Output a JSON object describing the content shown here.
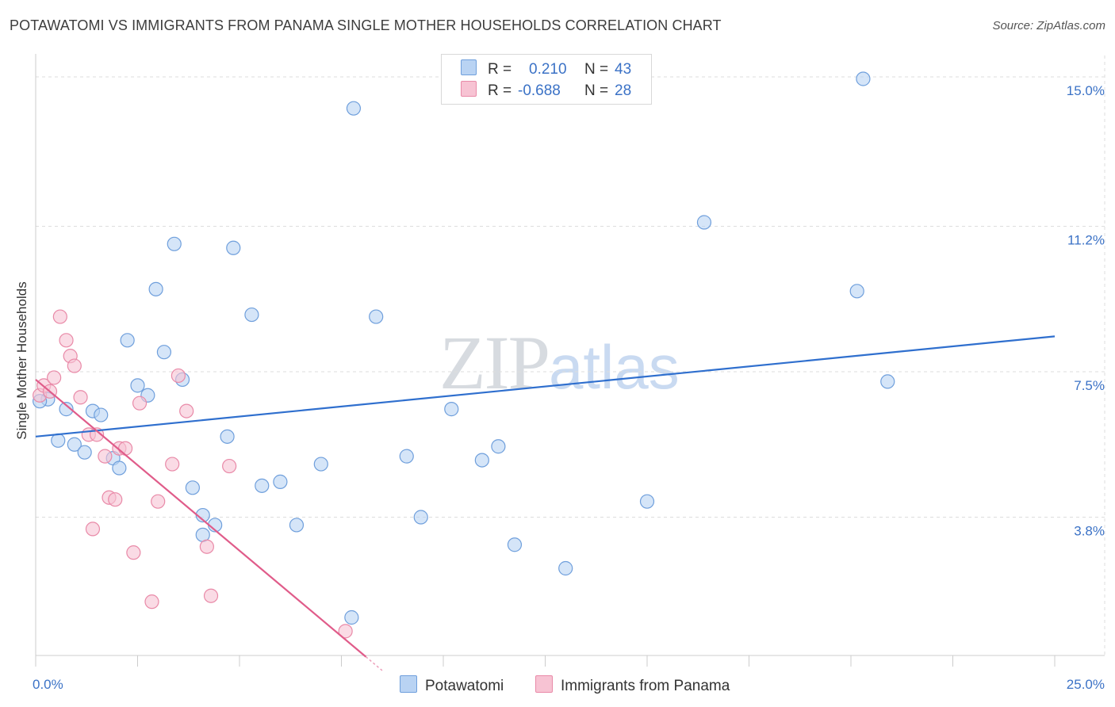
{
  "header": {
    "title": "POTAWATOMI VS IMMIGRANTS FROM PANAMA SINGLE MOTHER HOUSEHOLDS CORRELATION CHART",
    "source": "Source: ZipAtlas.com"
  },
  "watermark": {
    "zip": "ZIP",
    "atlas": "atlas"
  },
  "colors": {
    "blue_fill": "#b9d3f3",
    "blue_stroke": "#6f9fdc",
    "blue_line": "#2f6fce",
    "pink_fill": "#f7c3d3",
    "pink_stroke": "#e98aa8",
    "pink_line": "#e05c8a",
    "axis_label": "#3b72c6",
    "grid": "#dddddd"
  },
  "legend": {
    "rows": [
      {
        "r_label": "R =",
        "r_value": "0.210",
        "n_label": "N =",
        "n_value": "43"
      },
      {
        "r_label": "R =",
        "r_value": "-0.688",
        "n_label": "N =",
        "n_value": "28"
      }
    ]
  },
  "chart_data": {
    "type": "scatter",
    "title": "POTAWATOMI VS IMMIGRANTS FROM PANAMA SINGLE MOTHER HOUSEHOLDS CORRELATION CHART",
    "xlabel": "",
    "ylabel": "Single Mother Households",
    "xlim": [
      0,
      25
    ],
    "ylim": [
      0,
      15.5
    ],
    "x_ticks": [
      "0.0%",
      "25.0%"
    ],
    "y_ticks": [
      {
        "value": 3.8,
        "label": "3.8%"
      },
      {
        "value": 7.5,
        "label": "7.5%"
      },
      {
        "value": 11.2,
        "label": "11.2%"
      },
      {
        "value": 15.0,
        "label": "15.0%"
      }
    ],
    "grid": true,
    "legend_position": "top-center",
    "series": [
      {
        "name": "Potawatomi",
        "color": "#b9d3f3",
        "r": 0.21,
        "n": 43,
        "trend": {
          "x": [
            0,
            25
          ],
          "y": [
            5.85,
            8.4
          ]
        },
        "points": [
          [
            0.3,
            6.8
          ],
          [
            0.55,
            5.75
          ],
          [
            0.75,
            6.55
          ],
          [
            0.95,
            5.65
          ],
          [
            1.2,
            5.45
          ],
          [
            1.4,
            6.5
          ],
          [
            1.6,
            6.4
          ],
          [
            1.9,
            5.3
          ],
          [
            2.05,
            5.05
          ],
          [
            2.25,
            8.3
          ],
          [
            2.5,
            7.15
          ],
          [
            2.75,
            6.9
          ],
          [
            2.95,
            9.6
          ],
          [
            3.15,
            8.0
          ],
          [
            3.4,
            10.75
          ],
          [
            3.6,
            7.3
          ],
          [
            3.85,
            4.55
          ],
          [
            4.1,
            3.85
          ],
          [
            4.1,
            3.35
          ],
          [
            4.4,
            3.6
          ],
          [
            4.7,
            5.85
          ],
          [
            4.85,
            10.65
          ],
          [
            5.3,
            8.95
          ],
          [
            5.55,
            4.6
          ],
          [
            6.0,
            4.7
          ],
          [
            6.4,
            3.6
          ],
          [
            7.0,
            5.15
          ],
          [
            7.8,
            14.2
          ],
          [
            7.75,
            1.25
          ],
          [
            8.35,
            8.9
          ],
          [
            9.1,
            5.35
          ],
          [
            9.45,
            3.8
          ],
          [
            10.2,
            6.55
          ],
          [
            10.95,
            5.25
          ],
          [
            11.35,
            5.6
          ],
          [
            11.75,
            3.1
          ],
          [
            13.0,
            2.5
          ],
          [
            15.0,
            4.2
          ],
          [
            16.4,
            11.3
          ],
          [
            20.15,
            9.55
          ],
          [
            20.3,
            14.95
          ],
          [
            20.9,
            7.25
          ],
          [
            0.1,
            6.75
          ]
        ]
      },
      {
        "name": "Immigrants from Panama",
        "color": "#f7c3d3",
        "r": -0.688,
        "n": 28,
        "trend": {
          "x": [
            0,
            8.1
          ],
          "y": [
            7.3,
            0.25
          ]
        },
        "trend_dashed_to": {
          "x": 8.5,
          "y": -0.1
        },
        "points": [
          [
            0.1,
            6.9
          ],
          [
            0.2,
            7.15
          ],
          [
            0.35,
            7.0
          ],
          [
            0.45,
            7.35
          ],
          [
            0.6,
            8.9
          ],
          [
            0.75,
            8.3
          ],
          [
            0.85,
            7.9
          ],
          [
            0.95,
            7.65
          ],
          [
            1.1,
            6.85
          ],
          [
            1.3,
            5.9
          ],
          [
            1.4,
            3.5
          ],
          [
            1.5,
            5.9
          ],
          [
            1.7,
            5.35
          ],
          [
            1.8,
            4.3
          ],
          [
            1.95,
            4.25
          ],
          [
            2.05,
            5.55
          ],
          [
            2.2,
            5.55
          ],
          [
            2.4,
            2.9
          ],
          [
            2.55,
            6.7
          ],
          [
            2.85,
            1.65
          ],
          [
            3.0,
            4.2
          ],
          [
            3.35,
            5.15
          ],
          [
            3.5,
            7.4
          ],
          [
            3.7,
            6.5
          ],
          [
            4.2,
            3.05
          ],
          [
            4.3,
            1.8
          ],
          [
            4.75,
            5.1
          ],
          [
            7.6,
            0.9
          ]
        ]
      }
    ]
  }
}
